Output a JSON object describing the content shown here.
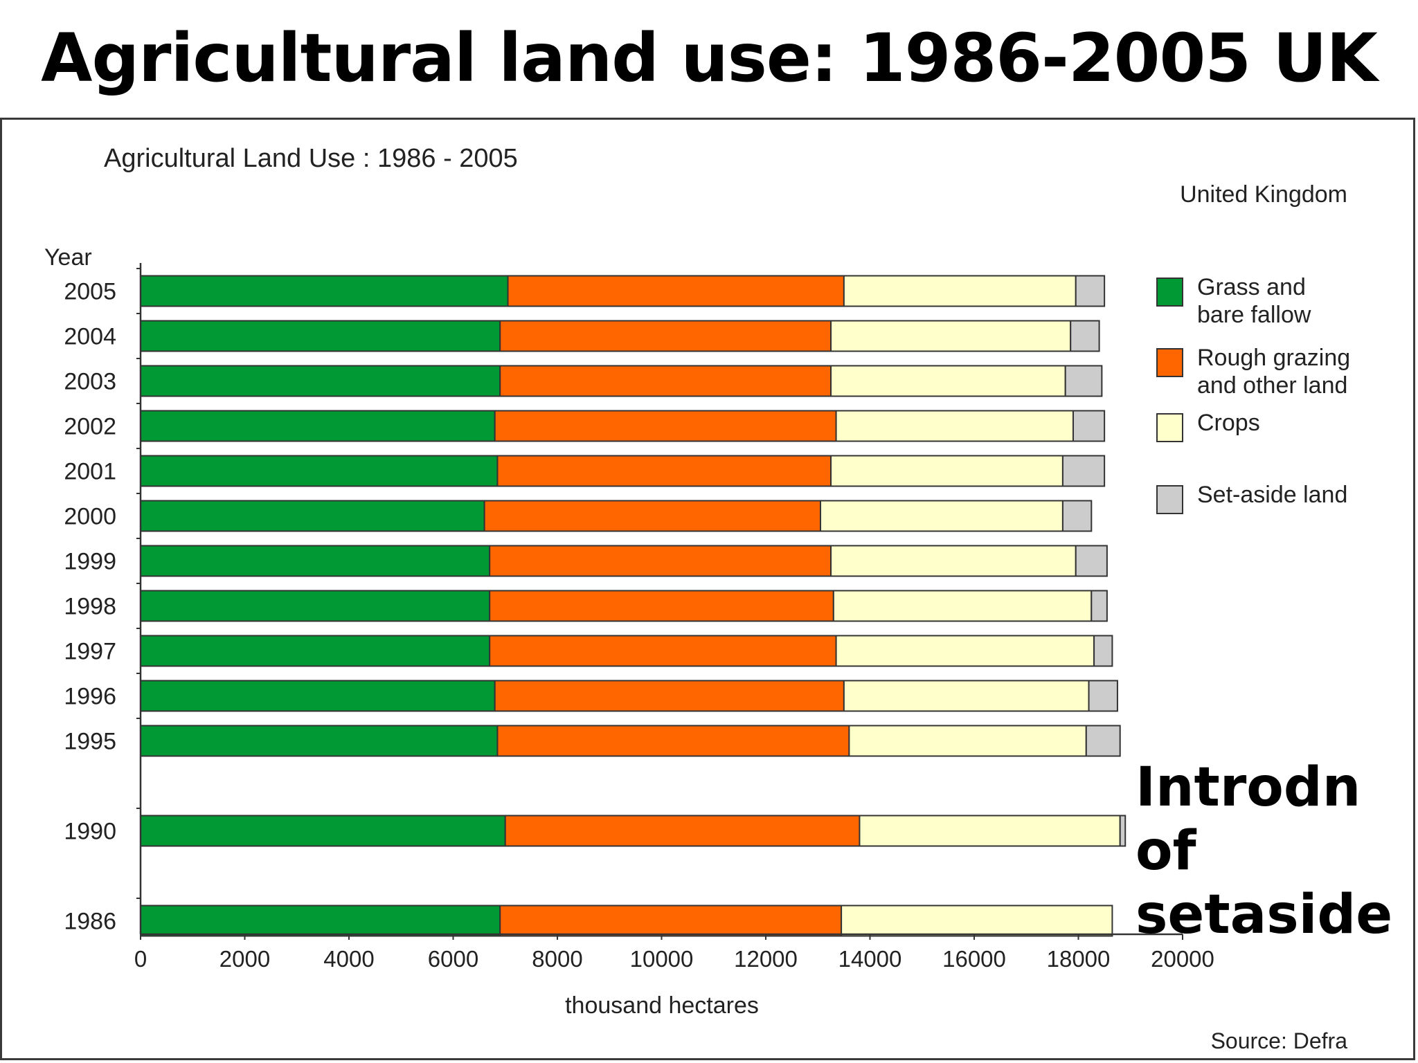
{
  "slide_title": "Agricultural land use: 1986-2005 UK",
  "annotation": [
    "Introdn of",
    "setaside"
  ],
  "chart_data": {
    "type": "bar",
    "orientation": "horizontal",
    "stacked": true,
    "title": "Agricultural Land Use : 1986 - 2005",
    "subtitle": "United Kingdom",
    "ylabel": "Year",
    "xlabel": "thousand hectares",
    "source": "Source: Defra",
    "xlim": [
      0,
      20000
    ],
    "xticks": [
      0,
      2000,
      4000,
      6000,
      8000,
      10000,
      12000,
      14000,
      16000,
      18000,
      20000
    ],
    "categories": [
      "2005",
      "2004",
      "2003",
      "2002",
      "2001",
      "2000",
      "1999",
      "1998",
      "1997",
      "1996",
      "1995",
      "1990",
      "1986"
    ],
    "category_gap_after": [
      "1995",
      "1990"
    ],
    "legend_position": "right",
    "series": [
      {
        "name": "Grass and bare fallow",
        "legend_lines": [
          "Grass and",
          "bare fallow"
        ],
        "color": "#009933",
        "values": [
          7050,
          6900,
          6900,
          6800,
          6850,
          6600,
          6700,
          6700,
          6700,
          6800,
          6850,
          7000,
          6900
        ]
      },
      {
        "name": "Rough grazing and other land",
        "legend_lines": [
          "Rough grazing",
          "and other land"
        ],
        "color": "#ff6600",
        "values": [
          6450,
          6350,
          6350,
          6550,
          6400,
          6450,
          6550,
          6600,
          6650,
          6700,
          6750,
          6800,
          6550
        ]
      },
      {
        "name": "Crops",
        "legend_lines": [
          "Crops"
        ],
        "color": "#ffffcc",
        "values": [
          4450,
          4600,
          4500,
          4550,
          4450,
          4650,
          4700,
          4950,
          4950,
          4700,
          4550,
          5000,
          5200
        ]
      },
      {
        "name": "Set-aside land",
        "legend_lines": [
          "Set-aside land"
        ],
        "color": "#cccccc",
        "values": [
          550,
          550,
          700,
          600,
          800,
          550,
          600,
          300,
          350,
          550,
          650,
          100,
          0
        ]
      }
    ]
  }
}
